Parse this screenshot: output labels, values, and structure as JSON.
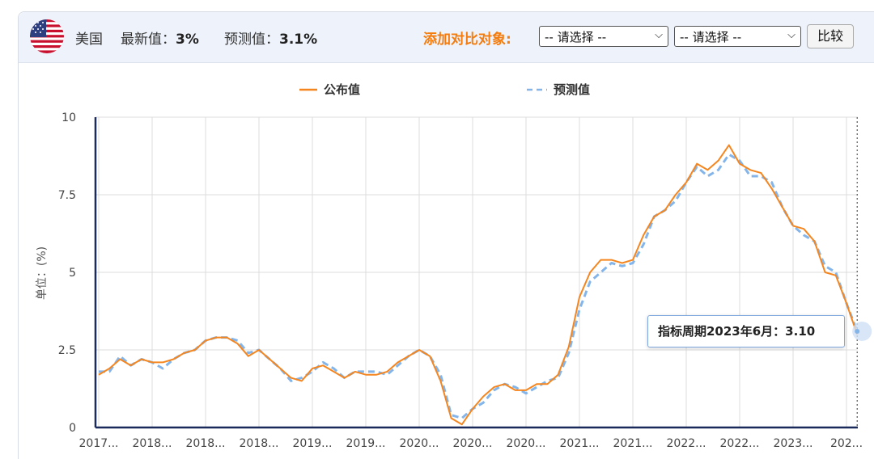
{
  "header": {
    "country": "美国",
    "latest_label": "最新值：",
    "latest_value": "3%",
    "forecast_label": "预测值：",
    "forecast_value": "3.1%",
    "compare_label": "添加对比对象:",
    "select1": "-- 请选择 --",
    "select2": "-- 请选择 --",
    "compare_button": "比较",
    "flag_icon": "us-flag-icon"
  },
  "tooltip": {
    "text": "指标周期2023年6月：3.10"
  },
  "colors": {
    "published": "#f5861f",
    "forecast": "#84b5ea",
    "axis": "#1a2a5a",
    "grid": "#dcdcdc",
    "compare_label": "#f47c0e"
  },
  "chart_data": {
    "type": "line",
    "legend_position": "top-center",
    "ylabel": "单位：(%)",
    "ylim": [
      0,
      10
    ],
    "yticks": [
      0,
      2.5,
      5,
      7.5,
      10
    ],
    "ytick_labels": [
      "0",
      "2.5",
      "5",
      "7.5",
      "10"
    ],
    "grid": true,
    "xtick_labels": [
      "2017...",
      "2018...",
      "2018...",
      "2018...",
      "2019...",
      "2019...",
      "2020...",
      "2020...",
      "2020...",
      "2021...",
      "2021...",
      "2022...",
      "2022...",
      "2023...",
      "202..."
    ],
    "xticks_month_index": [
      0,
      5,
      10,
      15,
      20,
      25,
      30,
      35,
      40,
      45,
      50,
      55,
      60,
      65,
      70
    ],
    "series": [
      {
        "name": "公布值",
        "style": "solid",
        "values": [
          1.7,
          1.9,
          2.2,
          2.0,
          2.2,
          2.1,
          2.1,
          2.2,
          2.4,
          2.5,
          2.8,
          2.9,
          2.9,
          2.7,
          2.3,
          2.5,
          2.2,
          1.9,
          1.6,
          1.5,
          1.9,
          2.0,
          1.8,
          1.6,
          1.8,
          1.7,
          1.7,
          1.8,
          2.1,
          2.3,
          2.5,
          2.3,
          1.5,
          0.3,
          0.1,
          0.6,
          1.0,
          1.3,
          1.4,
          1.2,
          1.2,
          1.4,
          1.4,
          1.7,
          2.6,
          4.2,
          5.0,
          5.4,
          5.4,
          5.3,
          5.4,
          6.2,
          6.8,
          7.0,
          7.5,
          7.9,
          8.5,
          8.3,
          8.6,
          9.1,
          8.5,
          8.3,
          8.2,
          7.7,
          7.1,
          6.5,
          6.4,
          6.0,
          5.0,
          4.9,
          4.0,
          3.0
        ]
      },
      {
        "name": "预测值",
        "style": "dashed",
        "values": [
          1.8,
          1.8,
          2.3,
          2.0,
          2.2,
          2.1,
          1.9,
          2.2,
          2.4,
          2.5,
          2.8,
          2.9,
          2.9,
          2.8,
          2.4,
          2.5,
          2.2,
          1.9,
          1.5,
          1.6,
          1.8,
          2.1,
          1.9,
          1.6,
          1.8,
          1.8,
          1.8,
          1.7,
          2.0,
          2.3,
          2.5,
          2.3,
          1.7,
          0.4,
          0.3,
          0.6,
          0.8,
          1.2,
          1.4,
          1.3,
          1.1,
          1.3,
          1.5,
          1.6,
          2.4,
          3.8,
          4.7,
          5.0,
          5.3,
          5.2,
          5.3,
          5.9,
          6.8,
          7.0,
          7.3,
          7.9,
          8.4,
          8.1,
          8.3,
          8.8,
          8.6,
          8.1,
          8.1,
          7.9,
          7.1,
          6.5,
          6.2,
          6.0,
          5.2,
          5.0,
          4.0,
          3.1
        ]
      }
    ]
  }
}
